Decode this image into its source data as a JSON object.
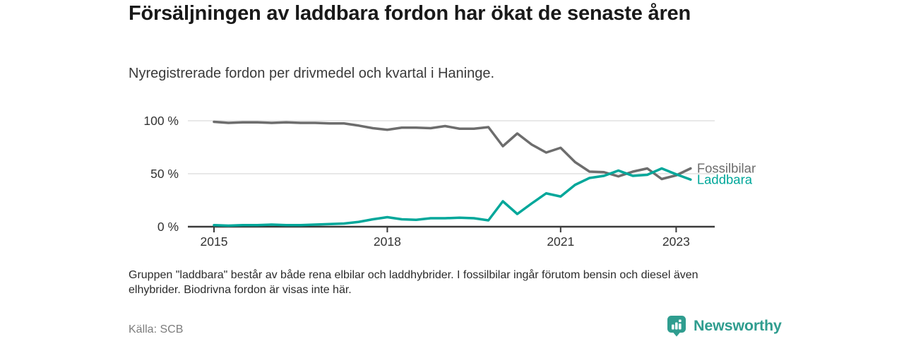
{
  "header": {
    "title": "Försäljningen av laddbara fordon har ökat de senaste åren",
    "subtitle": "Nyregistrerade fordon per drivmedel och kvartal i Haninge."
  },
  "chart_data": {
    "type": "line",
    "title": "Försäljningen av laddbara fordon har ökat de senaste åren",
    "subtitle": "Nyregistrerade fordon per drivmedel och kvartal i Haninge.",
    "unit": "%",
    "ylim": [
      0,
      100
    ],
    "grid": "horizontal",
    "legend_position": "end-of-line",
    "categories": [
      "2015Q1",
      "2015Q2",
      "2015Q3",
      "2015Q4",
      "2016Q1",
      "2016Q2",
      "2016Q3",
      "2016Q4",
      "2017Q1",
      "2017Q2",
      "2017Q3",
      "2017Q4",
      "2018Q1",
      "2018Q2",
      "2018Q3",
      "2018Q4",
      "2019Q1",
      "2019Q2",
      "2019Q3",
      "2019Q4",
      "2020Q1",
      "2020Q2",
      "2020Q3",
      "2020Q4",
      "2021Q1",
      "2021Q2",
      "2021Q3",
      "2021Q4",
      "2022Q1",
      "2022Q2",
      "2022Q3",
      "2022Q4",
      "2023Q1",
      "2023Q2"
    ],
    "series": [
      {
        "name": "Fossilbilar",
        "color": "#6d6d6d",
        "values": [
          99,
          98,
          98.5,
          98.5,
          98,
          98.5,
          98,
          98,
          97.5,
          97.5,
          95.5,
          93,
          91.5,
          93.5,
          93.5,
          93,
          95,
          92.5,
          92.5,
          94,
          76,
          88,
          77.5,
          70,
          74.5,
          61,
          52,
          51.5,
          47.5,
          52,
          55,
          45,
          48.5,
          55
        ]
      },
      {
        "name": "Laddbara",
        "color": "#00a79a",
        "values": [
          1.5,
          1,
          1.5,
          1.5,
          2,
          1.5,
          1.5,
          2,
          2.5,
          3,
          4.5,
          7,
          9,
          7,
          6.5,
          8,
          8,
          8.5,
          8,
          6,
          24,
          12,
          22,
          31.5,
          28.5,
          39.5,
          46,
          48,
          53,
          48,
          49,
          55,
          49.5,
          44.5
        ]
      }
    ],
    "y_ticks": [
      {
        "label": "100 %",
        "value": 100
      },
      {
        "label": "50 %",
        "value": 50
      },
      {
        "label": "0 %",
        "value": 0
      }
    ],
    "x_ticks": [
      {
        "label": "2015",
        "index": 0
      },
      {
        "label": "2018",
        "index": 12
      },
      {
        "label": "2021",
        "index": 24
      },
      {
        "label": "2023",
        "index": 32
      }
    ]
  },
  "footnote": {
    "text": "Gruppen \"laddbara\" består av både rena elbilar och laddhybrider. I fossilbilar ingår förutom bensin och diesel även elhybrider. Biodrivna fordon är visas inte här."
  },
  "source": {
    "label": "Källa: SCB"
  },
  "logo": {
    "text": "Newsworthy",
    "color": "#2f9d8f"
  }
}
